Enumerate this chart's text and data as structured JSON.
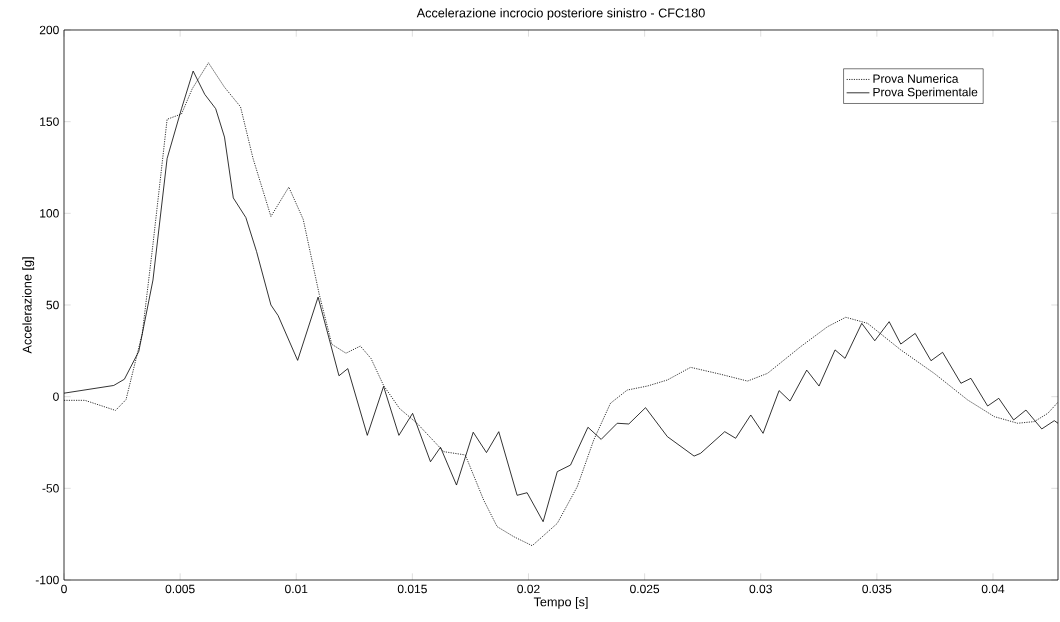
{
  "chart_data": {
    "type": "line",
    "title": "Accelerazione incrocio posteriore sinistro - CFC180",
    "xlabel": "Tempo [s]",
    "ylabel": "Accelerazione [g]",
    "xlim": [
      0,
      0.0428
    ],
    "ylim": [
      -100,
      200
    ],
    "xticks": [
      0,
      0.005,
      0.01,
      0.015,
      0.02,
      0.025,
      0.03,
      0.035,
      0.04
    ],
    "yticks": [
      -100,
      -50,
      0,
      50,
      100,
      150,
      200
    ],
    "grid": false,
    "legend": "top right",
    "series": [
      {
        "name": "Prova Numerica",
        "color": "#000000",
        "line_style": "dotted",
        "x": [
          0,
          0.0009,
          0.00222,
          0.00267,
          0.00337,
          0.00383,
          0.00444,
          0.00506,
          0.00552,
          0.00622,
          0.00691,
          0.0076,
          0.00814,
          0.00891,
          0.00968,
          0.0103,
          0.01099,
          0.01153,
          0.01214,
          0.01276,
          0.01322,
          0.01376,
          0.01445,
          0.0152,
          0.01635,
          0.01728,
          0.01807,
          0.01865,
          0.01937,
          0.02016,
          0.02124,
          0.0221,
          0.02281,
          0.02353,
          0.02425,
          0.02512,
          0.02598,
          0.02698,
          0.02828,
          0.02943,
          0.03029,
          0.03172,
          0.03288,
          0.03366,
          0.0346,
          0.03603,
          0.03747,
          0.03891,
          0.04006,
          0.04106,
          0.04178,
          0.04236,
          0.0428
        ],
        "values": [
          -2,
          -2,
          -7.5,
          -1.6,
          34.4,
          83.1,
          151.3,
          154.2,
          167.9,
          182.1,
          168.8,
          158.1,
          129.9,
          98.3,
          114.3,
          96.7,
          55.8,
          28.6,
          23.7,
          27.6,
          20.8,
          6.1,
          -6.5,
          -14.5,
          -30,
          -31.8,
          -56.4,
          -70.9,
          -76.4,
          -81.3,
          -69.1,
          -49.1,
          -23.6,
          -3.6,
          3.6,
          5.8,
          9.1,
          16,
          12.2,
          8.5,
          12.7,
          27.3,
          38.2,
          43.3,
          40,
          25.5,
          12.7,
          -1.8,
          -10.9,
          -14.5,
          -13.6,
          -9.1,
          -3
        ]
      },
      {
        "name": "Prova Sperimentale",
        "color": "#000000",
        "line_style": "solid",
        "x": [
          0,
          0.00214,
          0.0026,
          0.00322,
          0.00383,
          0.00444,
          0.00506,
          0.00556,
          0.00606,
          0.00653,
          0.00691,
          0.00729,
          0.00783,
          0.00829,
          0.00891,
          0.00922,
          0.01006,
          0.01094,
          0.01184,
          0.01222,
          0.01306,
          0.01376,
          0.01442,
          0.01501,
          0.01578,
          0.01621,
          0.0169,
          0.01762,
          0.01819,
          0.01872,
          0.01951,
          0.01994,
          0.02063,
          0.02124,
          0.02181,
          0.02256,
          0.02313,
          0.02382,
          0.02432,
          0.02504,
          0.02598,
          0.02713,
          0.02741,
          0.02845,
          0.02892,
          0.02957,
          0.0301,
          0.03079,
          0.03126,
          0.03198,
          0.03251,
          0.0332,
          0.03363,
          0.03435,
          0.03491,
          0.03553,
          0.03603,
          0.03665,
          0.03733,
          0.03783,
          0.03862,
          0.03905,
          0.03977,
          0.04025,
          0.04089,
          0.04142,
          0.0421,
          0.04264,
          0.0428
        ],
        "values": [
          1.9,
          6.1,
          9.5,
          24.7,
          63.6,
          129.9,
          157.1,
          177.6,
          164.9,
          157.1,
          141.6,
          108.4,
          97.7,
          79.2,
          50,
          44.2,
          19.8,
          54.3,
          11.4,
          15.3,
          -21.1,
          5.6,
          -21.1,
          -9.1,
          -35.5,
          -27.6,
          -48.2,
          -19.4,
          -30.5,
          -19.1,
          -53.8,
          -52.4,
          -68.2,
          -40.9,
          -37.3,
          -16.7,
          -23.3,
          -14.5,
          -14.9,
          -6,
          -21.8,
          -32.4,
          -30.9,
          -19.1,
          -22.7,
          -10,
          -20,
          3.3,
          -2.4,
          14.5,
          5.8,
          25.5,
          20.9,
          40,
          30.5,
          40.9,
          28.7,
          34.5,
          19.6,
          24.2,
          7.3,
          10,
          -5.1,
          -0.9,
          -12.7,
          -7.3,
          -17.6,
          -13.1,
          -14.5
        ]
      }
    ]
  }
}
